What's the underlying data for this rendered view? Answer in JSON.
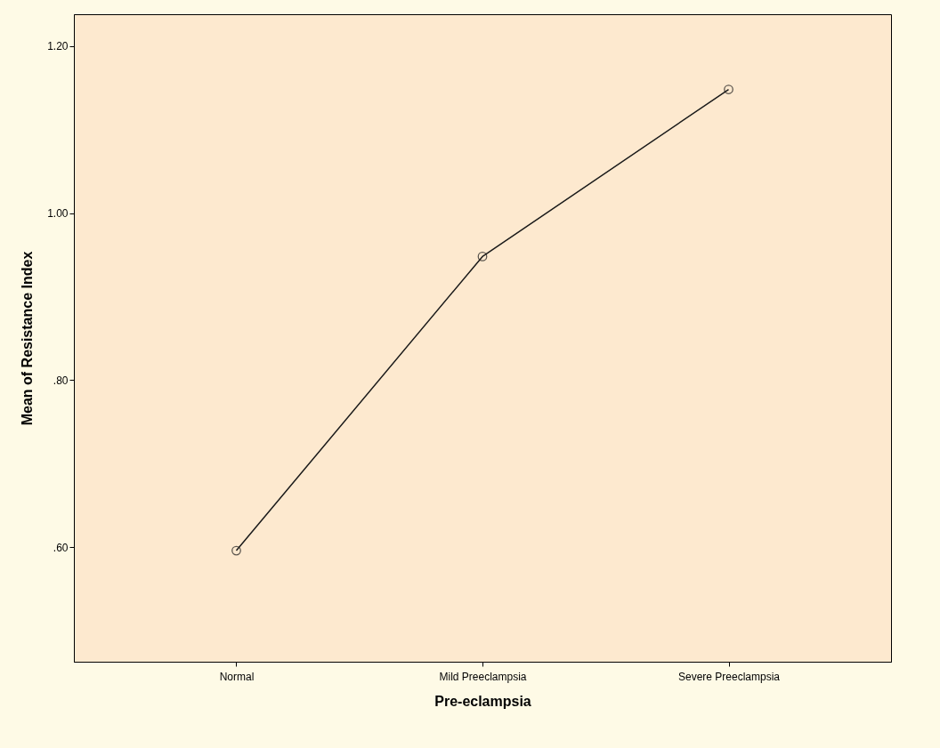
{
  "chart_data": {
    "type": "line",
    "xlabel": "Pre-eclampsia",
    "ylabel": "Mean of Resistance Index",
    "categories": [
      "Normal",
      "Mild Preeclampsia",
      "Severe Preeclampsia"
    ],
    "series": [
      {
        "color": "#1a1a1a",
        "values": [
          0.596,
          0.948,
          1.148
        ]
      }
    ],
    "ylim": [
      0.463,
      1.238
    ],
    "yticks": [
      {
        "value": 0.6,
        "label": ".60"
      },
      {
        "value": 0.8,
        "label": ".80"
      },
      {
        "value": 1.0,
        "label": "1.00"
      },
      {
        "value": 1.2,
        "label": "1.20"
      }
    ],
    "marker": "circle",
    "line_style": "solid",
    "grid": false,
    "legend": false
  }
}
